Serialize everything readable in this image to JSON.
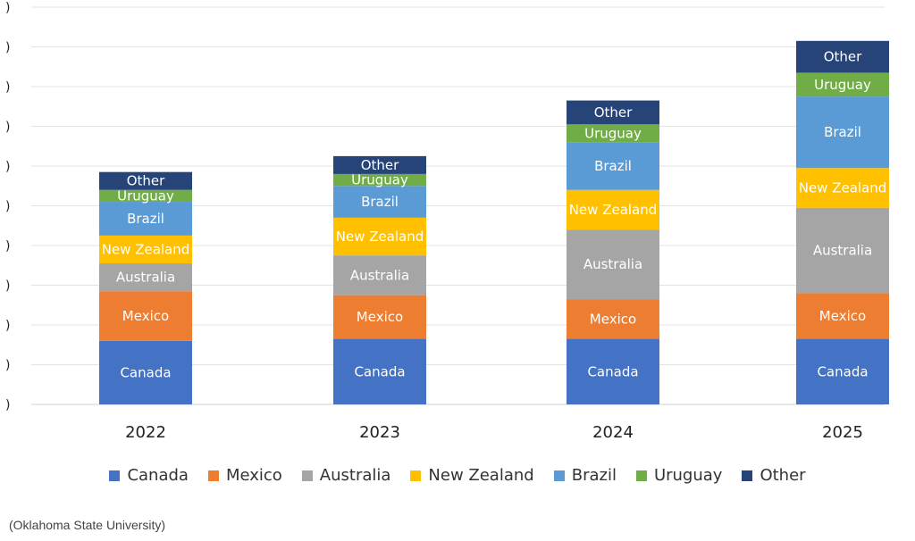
{
  "chart_data": {
    "type": "bar",
    "stacked": true,
    "categories": [
      "2022",
      "2023",
      "2024",
      "2025"
    ],
    "series": [
      {
        "name": "Canada",
        "color": "#4472C4",
        "values": [
          1.6,
          1.65,
          1.65,
          1.65
        ]
      },
      {
        "name": "Mexico",
        "color": "#ED7D31",
        "values": [
          1.25,
          1.1,
          1.0,
          1.15
        ]
      },
      {
        "name": "Australia",
        "color": "#A5A5A5",
        "values": [
          0.7,
          1.0,
          1.75,
          2.15
        ]
      },
      {
        "name": "New Zealand",
        "color": "#FFC000",
        "values": [
          0.7,
          0.95,
          1.0,
          1.0
        ]
      },
      {
        "name": "Brazil",
        "color": "#5B9BD5",
        "values": [
          0.85,
          0.8,
          1.2,
          1.8
        ]
      },
      {
        "name": "Uruguay",
        "color": "#70AD47",
        "values": [
          0.3,
          0.3,
          0.45,
          0.6
        ]
      },
      {
        "name": "Other",
        "color": "#264478",
        "values": [
          0.45,
          0.45,
          0.6,
          0.8
        ]
      }
    ],
    "ylim": [
      0,
      10
    ],
    "grid": true,
    "legend_position": "bottom",
    "tick_labels": [
      ")",
      ")",
      ")",
      ")",
      ")",
      ")",
      ")",
      ")",
      ")",
      ")",
      ")"
    ]
  },
  "legend": [
    {
      "label": "Canada",
      "color": "#4472C4"
    },
    {
      "label": "Mexico",
      "color": "#ED7D31"
    },
    {
      "label": "Australia",
      "color": "#A5A5A5"
    },
    {
      "label": "New Zealand",
      "color": "#FFC000"
    },
    {
      "label": "Brazil",
      "color": "#5B9BD5"
    },
    {
      "label": "Uruguay",
      "color": "#70AD47"
    },
    {
      "label": "Other",
      "color": "#264478"
    }
  ],
  "source_text": "(Oklahoma State University)"
}
